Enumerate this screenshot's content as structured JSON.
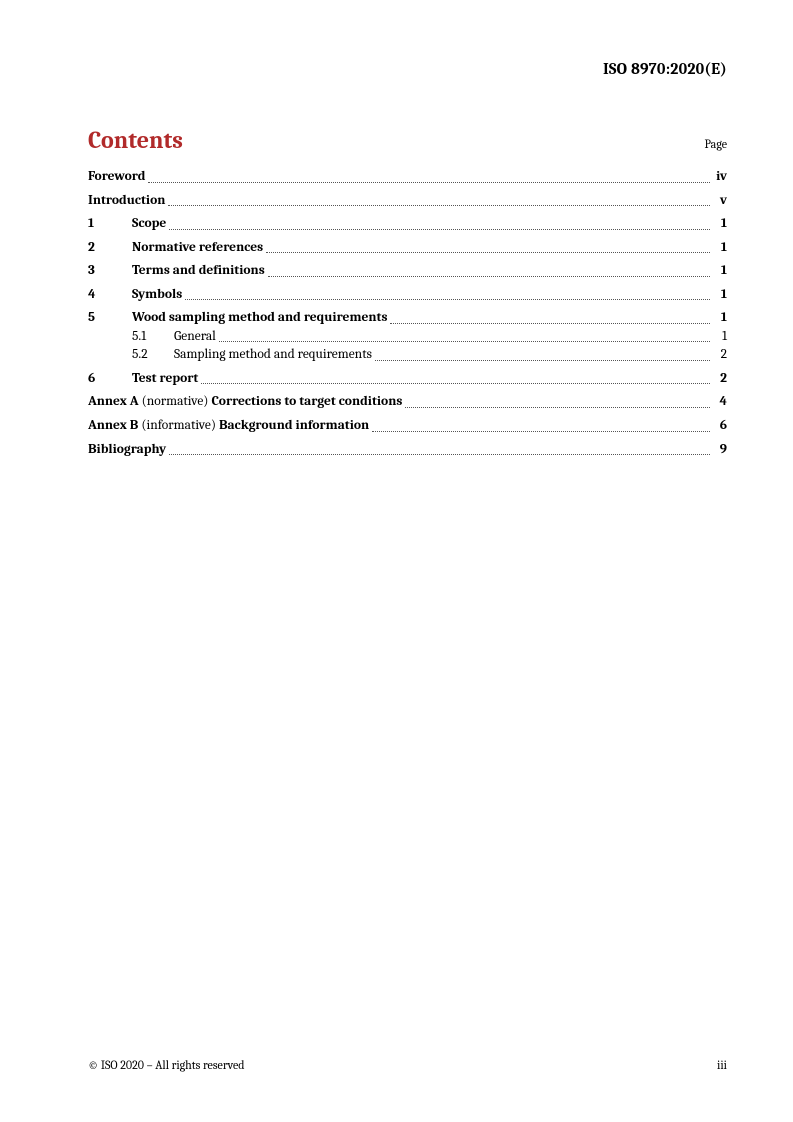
{
  "header": {
    "doc_id": "ISO 8970:2020(E)"
  },
  "contents": {
    "title": "Contents",
    "page_label": "Page",
    "entries": [
      {
        "kind": "plain",
        "label": "Foreword",
        "page": "iv"
      },
      {
        "kind": "plain",
        "label": "Introduction",
        "page": "v"
      },
      {
        "kind": "numbered",
        "num": "1",
        "label": "Scope",
        "page": "1"
      },
      {
        "kind": "numbered",
        "num": "2",
        "label": "Normative references",
        "page": "1"
      },
      {
        "kind": "numbered",
        "num": "3",
        "label": "Terms and definitions",
        "page": "1"
      },
      {
        "kind": "numbered",
        "num": "4",
        "label": "Symbols",
        "page": "1"
      },
      {
        "kind": "numbered",
        "num": "5",
        "label": "Wood sampling method and requirements",
        "page": "1",
        "subs": [
          {
            "num": "5.1",
            "label": "General",
            "page": "1"
          },
          {
            "num": "5.2",
            "label": "Sampling method and requirements",
            "page": "2"
          }
        ]
      },
      {
        "kind": "numbered",
        "num": "6",
        "label": "Test report",
        "page": "2"
      },
      {
        "kind": "annex",
        "prefix": "Annex A",
        "type": "(normative)",
        "title": "Corrections to target conditions",
        "page": "4"
      },
      {
        "kind": "annex",
        "prefix": "Annex B",
        "type": "(informative)",
        "title": "Background information",
        "page": "6"
      },
      {
        "kind": "plain",
        "label": "Bibliography",
        "page": "9"
      }
    ]
  },
  "footer": {
    "copyright": "© ISO 2020 – All rights reserved",
    "page_num": "iii"
  }
}
